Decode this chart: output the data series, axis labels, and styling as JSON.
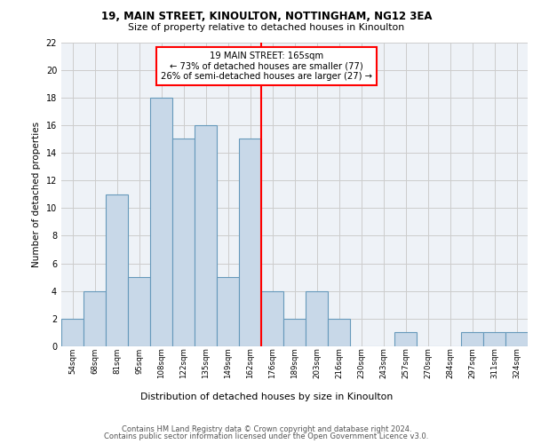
{
  "title1": "19, MAIN STREET, KINOULTON, NOTTINGHAM, NG12 3EA",
  "title2": "Size of property relative to detached houses in Kinoulton",
  "xlabel": "Distribution of detached houses by size in Kinoulton",
  "ylabel": "Number of detached properties",
  "footer1": "Contains HM Land Registry data © Crown copyright and database right 2024.",
  "footer2": "Contains public sector information licensed under the Open Government Licence v3.0.",
  "annotation_title": "19 MAIN STREET: 165sqm",
  "annotation_line1": "← 73% of detached houses are smaller (77)",
  "annotation_line2": "26% of semi-detached houses are larger (27) →",
  "bar_labels": [
    "54sqm",
    "68sqm",
    "81sqm",
    "95sqm",
    "108sqm",
    "122sqm",
    "135sqm",
    "149sqm",
    "162sqm",
    "176sqm",
    "189sqm",
    "203sqm",
    "216sqm",
    "230sqm",
    "243sqm",
    "257sqm",
    "270sqm",
    "284sqm",
    "297sqm",
    "311sqm",
    "324sqm"
  ],
  "bar_values": [
    2,
    4,
    11,
    5,
    18,
    15,
    16,
    5,
    15,
    4,
    2,
    4,
    2,
    0,
    0,
    1,
    0,
    0,
    1,
    1,
    1
  ],
  "bar_color": "#c8d8e8",
  "bar_edge_color": "#6699bb",
  "vline_x": 8.5,
  "vline_color": "red",
  "ylim": [
    0,
    22
  ],
  "yticks": [
    0,
    2,
    4,
    6,
    8,
    10,
    12,
    14,
    16,
    18,
    20,
    22
  ],
  "bg_color": "#eef2f7",
  "grid_color": "#cccccc",
  "annotation_box_color": "white",
  "annotation_box_edge": "red"
}
